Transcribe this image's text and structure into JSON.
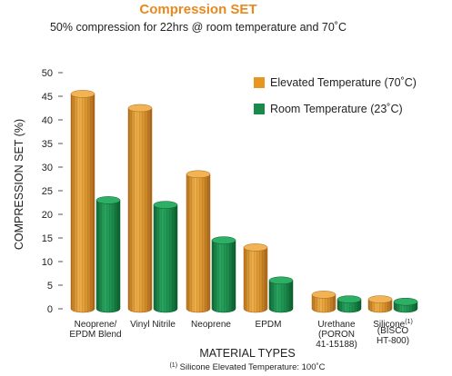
{
  "chart_data": {
    "type": "bar",
    "title": "Compression SET",
    "subtitle": "50% compression for 22hrs @ room temperature and 70˚C",
    "xlabel": "MATERIAL TYPES",
    "ylabel": "COMPRESSION SET (%)",
    "ylim": [
      0,
      50
    ],
    "yticks": [
      0,
      5,
      10,
      15,
      20,
      25,
      30,
      35,
      40,
      45,
      50
    ],
    "grid": false,
    "legend_position": "top-right",
    "categories": [
      [
        "Neoprene/",
        "EPDM Blend"
      ],
      [
        "Vinyl Nitrile"
      ],
      [
        "Neoprene"
      ],
      [
        "EPDM"
      ],
      [
        "Urethane",
        "(PORON",
        "41-15188)"
      ],
      [
        "Silicone",
        "(BISCO",
        "HT-800)"
      ]
    ],
    "category_superscripts": [
      "",
      "",
      "",
      "",
      "",
      "(1)"
    ],
    "series": [
      {
        "name": "Elevated Temperature (70˚C)",
        "color": "#d9962a",
        "values": [
          45.5,
          42.5,
          28.5,
          13,
          3,
          2
        ]
      },
      {
        "name": "Room Temperature (23˚C)",
        "color": "#1a8a4a",
        "values": [
          23,
          22,
          14.5,
          6,
          2,
          1.5
        ]
      }
    ],
    "footnote": {
      "marker": "(1)",
      "text": " Silicone Elevated Temperature: 100˚C"
    }
  }
}
